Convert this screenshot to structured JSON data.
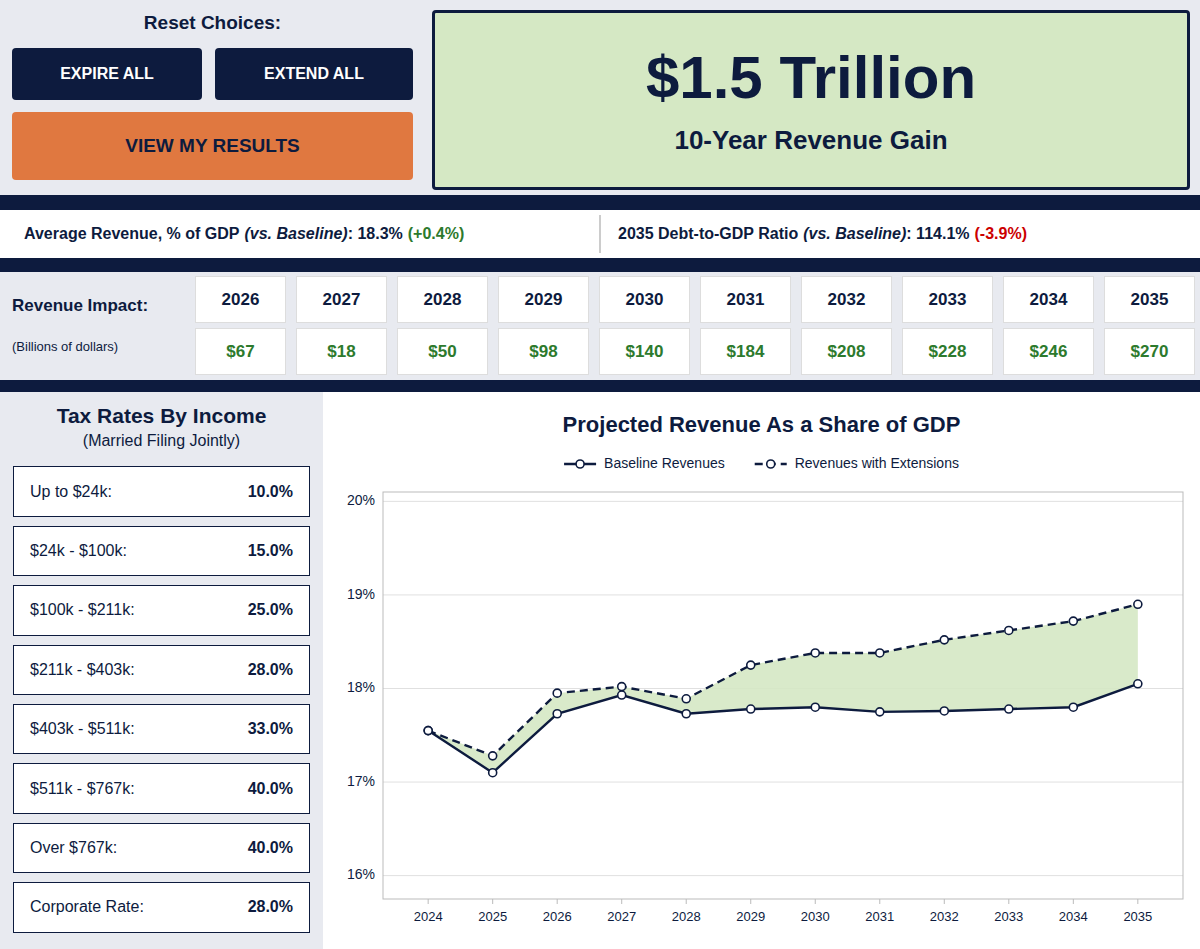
{
  "chart_data": {
    "type": "line",
    "title": "Projected Revenue As a Share of GDP",
    "x": [
      2024,
      2025,
      2026,
      2027,
      2028,
      2029,
      2030,
      2031,
      2032,
      2033,
      2034,
      2035
    ],
    "series": [
      {
        "name": "Baseline Revenues",
        "color": "#0d1b3e",
        "line_style": "solid",
        "marker": "circle",
        "values": [
          17.55,
          17.1,
          17.73,
          17.93,
          17.73,
          17.78,
          17.8,
          17.75,
          17.76,
          17.78,
          17.8,
          18.05
        ]
      },
      {
        "name": "Revenues with Extensions",
        "color": "#0d1b3e",
        "line_style": "dashed",
        "marker": "circle",
        "values": [
          17.55,
          17.28,
          17.95,
          18.02,
          17.89,
          18.25,
          18.38,
          18.38,
          18.52,
          18.62,
          18.72,
          18.9
        ]
      }
    ],
    "xlim": [
      2023.3,
      2035.7
    ],
    "xticks": [
      2024,
      2025,
      2026,
      2027,
      2028,
      2029,
      2030,
      2031,
      2032,
      2033,
      2034,
      2035
    ],
    "ylim": [
      15.75,
      20.1
    ],
    "yticks": [
      {
        "value": 16,
        "label": "16%"
      },
      {
        "value": 17,
        "label": "17%"
      },
      {
        "value": 18,
        "label": "18%"
      },
      {
        "value": 19,
        "label": "19%"
      },
      {
        "value": 20,
        "label": "20%"
      }
    ],
    "grid": true,
    "legend": "top",
    "annotations": [
      "Reset Choices:",
      "EXPIRE ALL",
      "EXTEND ALL",
      "VIEW MY RESULTS",
      "$1.5 Trillion",
      "10-Year Revenue Gain",
      "Average Revenue, % of GDP",
      "(vs. Baseline)",
      ": 18.3%",
      "(+0.4%)",
      "2035 Debt-to-GDP Ratio",
      "(vs. Baseline)",
      ": 114.1%",
      "(-3.9%)",
      "Revenue Impact:",
      "(Billions of dollars)",
      "2026",
      "2027",
      "2028",
      "2029",
      "2030",
      "2031",
      "2032",
      "2033",
      "2034",
      "2035",
      "$67",
      "$18",
      "$50",
      "$98",
      "$140",
      "$184",
      "$208",
      "$228",
      "$246",
      "$270",
      "Tax Rates By Income",
      "(Married Filing Jointly)",
      "Up to $24k:",
      "10.0%",
      "$24k - $100k:",
      "15.0%",
      "$100k - $211k:",
      "25.0%",
      "$211k - $403k:",
      "28.0%",
      "$403k - $511k:",
      "33.0%",
      "$511k - $767k:",
      "40.0%",
      "Over $767k:",
      "40.0%",
      "Corporate Rate:",
      "28.0%"
    ]
  }
}
